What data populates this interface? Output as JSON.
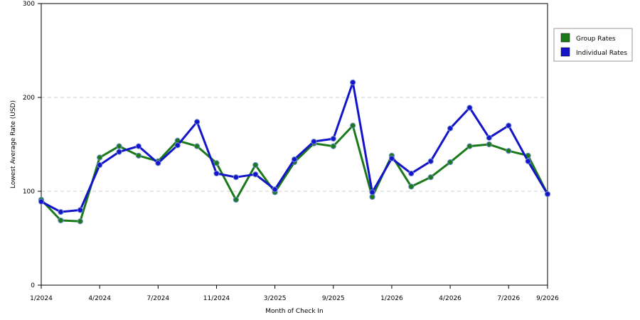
{
  "chart_data": {
    "type": "line",
    "xlabel": "Month of Check In",
    "ylabel": "Lowest Average Rate (USD)",
    "ylim": [
      0,
      300
    ],
    "yticks": [
      0,
      100,
      200,
      300
    ],
    "grid": "horizontal dashed at y ticks",
    "legend_position": "right",
    "x_tick_labels": [
      "1/2024",
      "4/2024",
      "7/2024",
      "11/2024",
      "3/2025",
      "9/2025",
      "1/2026",
      "4/2026",
      "7/2026",
      "9/2026"
    ],
    "x_tick_indices": [
      0,
      3,
      6,
      9,
      12,
      15,
      18,
      21,
      24,
      26
    ],
    "series": [
      {
        "name": "Group Rates",
        "color": "#1a7a1a",
        "values": [
          91,
          69,
          68,
          136,
          148,
          138,
          132,
          154,
          148,
          130,
          91,
          128,
          99,
          131,
          151,
          148,
          170,
          94,
          138,
          105,
          115,
          131,
          148,
          150,
          143,
          138,
          97
        ]
      },
      {
        "name": "Individual Rates",
        "color": "#1414c8",
        "values": [
          89,
          78,
          80,
          128,
          142,
          148,
          130,
          149,
          174,
          119,
          115,
          118,
          102,
          134,
          153,
          156,
          216,
          99,
          135,
          119,
          132,
          167,
          189,
          157,
          170,
          132,
          97
        ]
      }
    ]
  }
}
